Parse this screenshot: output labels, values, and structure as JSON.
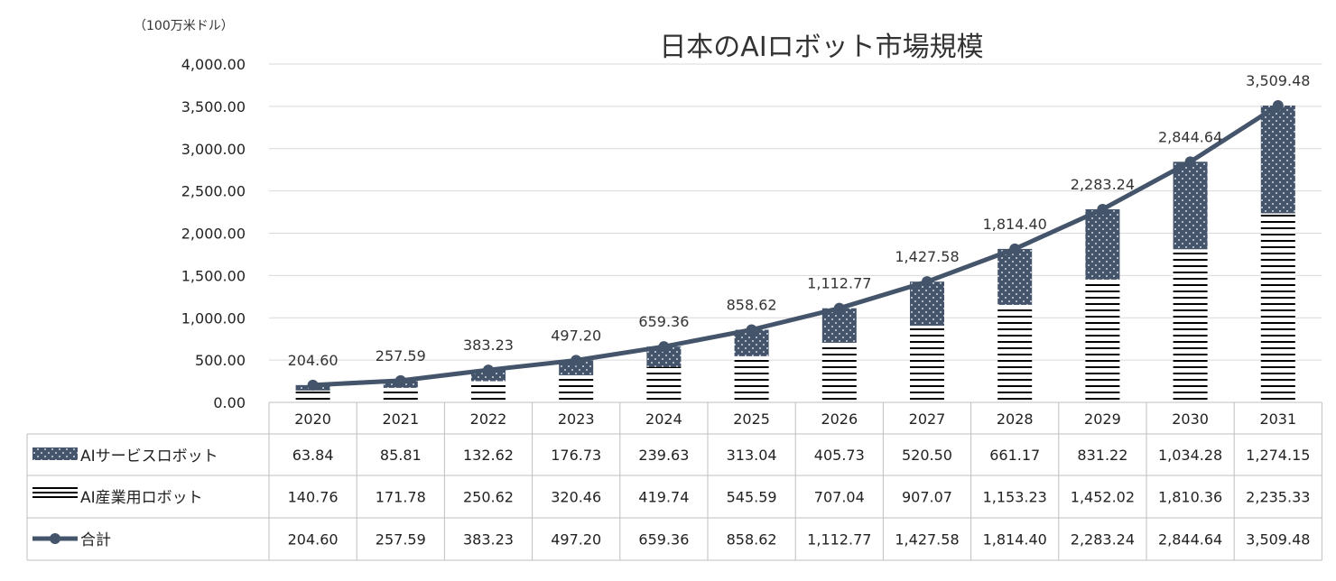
{
  "chart_data": {
    "type": "bar",
    "subtype": "stacked-bar-with-line-and-data-table",
    "title": "日本のAIロボット市場規模",
    "unit_label": "（100万米ドル）",
    "categories": [
      "2020",
      "2021",
      "2022",
      "2023",
      "2024",
      "2025",
      "2026",
      "2027",
      "2028",
      "2029",
      "2030",
      "2031"
    ],
    "ylim": [
      0,
      4000
    ],
    "yticks": [
      0,
      500,
      1000,
      1500,
      2000,
      2500,
      3000,
      3500,
      4000
    ],
    "ytick_labels": [
      "0.00",
      "500.00",
      "1,000.00",
      "1,500.00",
      "2,000.00",
      "2,500.00",
      "3,000.00",
      "3,500.00",
      "4,000.00"
    ],
    "grid": true,
    "series": [
      {
        "name": "AIサービスロボット",
        "kind": "bar",
        "pattern": "dots",
        "color": "#44546a",
        "values": [
          63.84,
          85.81,
          132.62,
          176.73,
          239.63,
          313.04,
          405.73,
          520.5,
          661.17,
          831.22,
          1034.28,
          1274.15
        ],
        "labels": [
          "63.84",
          "85.81",
          "132.62",
          "176.73",
          "239.63",
          "313.04",
          "405.73",
          "520.50",
          "661.17",
          "831.22",
          "1,034.28",
          "1,274.15"
        ]
      },
      {
        "name": "AI産業用ロボット",
        "kind": "bar",
        "pattern": "horizontal-lines",
        "color": "#000000",
        "values": [
          140.76,
          171.78,
          250.62,
          320.46,
          419.74,
          545.59,
          707.04,
          907.07,
          1153.23,
          1452.02,
          1810.36,
          2235.33
        ],
        "labels": [
          "140.76",
          "171.78",
          "250.62",
          "320.46",
          "419.74",
          "545.59",
          "707.04",
          "907.07",
          "1,153.23",
          "1,452.02",
          "1,810.36",
          "2,235.33"
        ]
      },
      {
        "name": "合計",
        "kind": "line",
        "color": "#44546a",
        "values": [
          204.6,
          257.59,
          383.23,
          497.2,
          659.36,
          858.62,
          1112.77,
          1427.58,
          1814.4,
          2283.24,
          2844.64,
          3509.48
        ],
        "labels": [
          "204.60",
          "257.59",
          "383.23",
          "497.20",
          "659.36",
          "858.62",
          "1,112.77",
          "1,427.58",
          "1,814.40",
          "2,283.24",
          "2,844.64",
          "3,509.48"
        ]
      }
    ]
  }
}
